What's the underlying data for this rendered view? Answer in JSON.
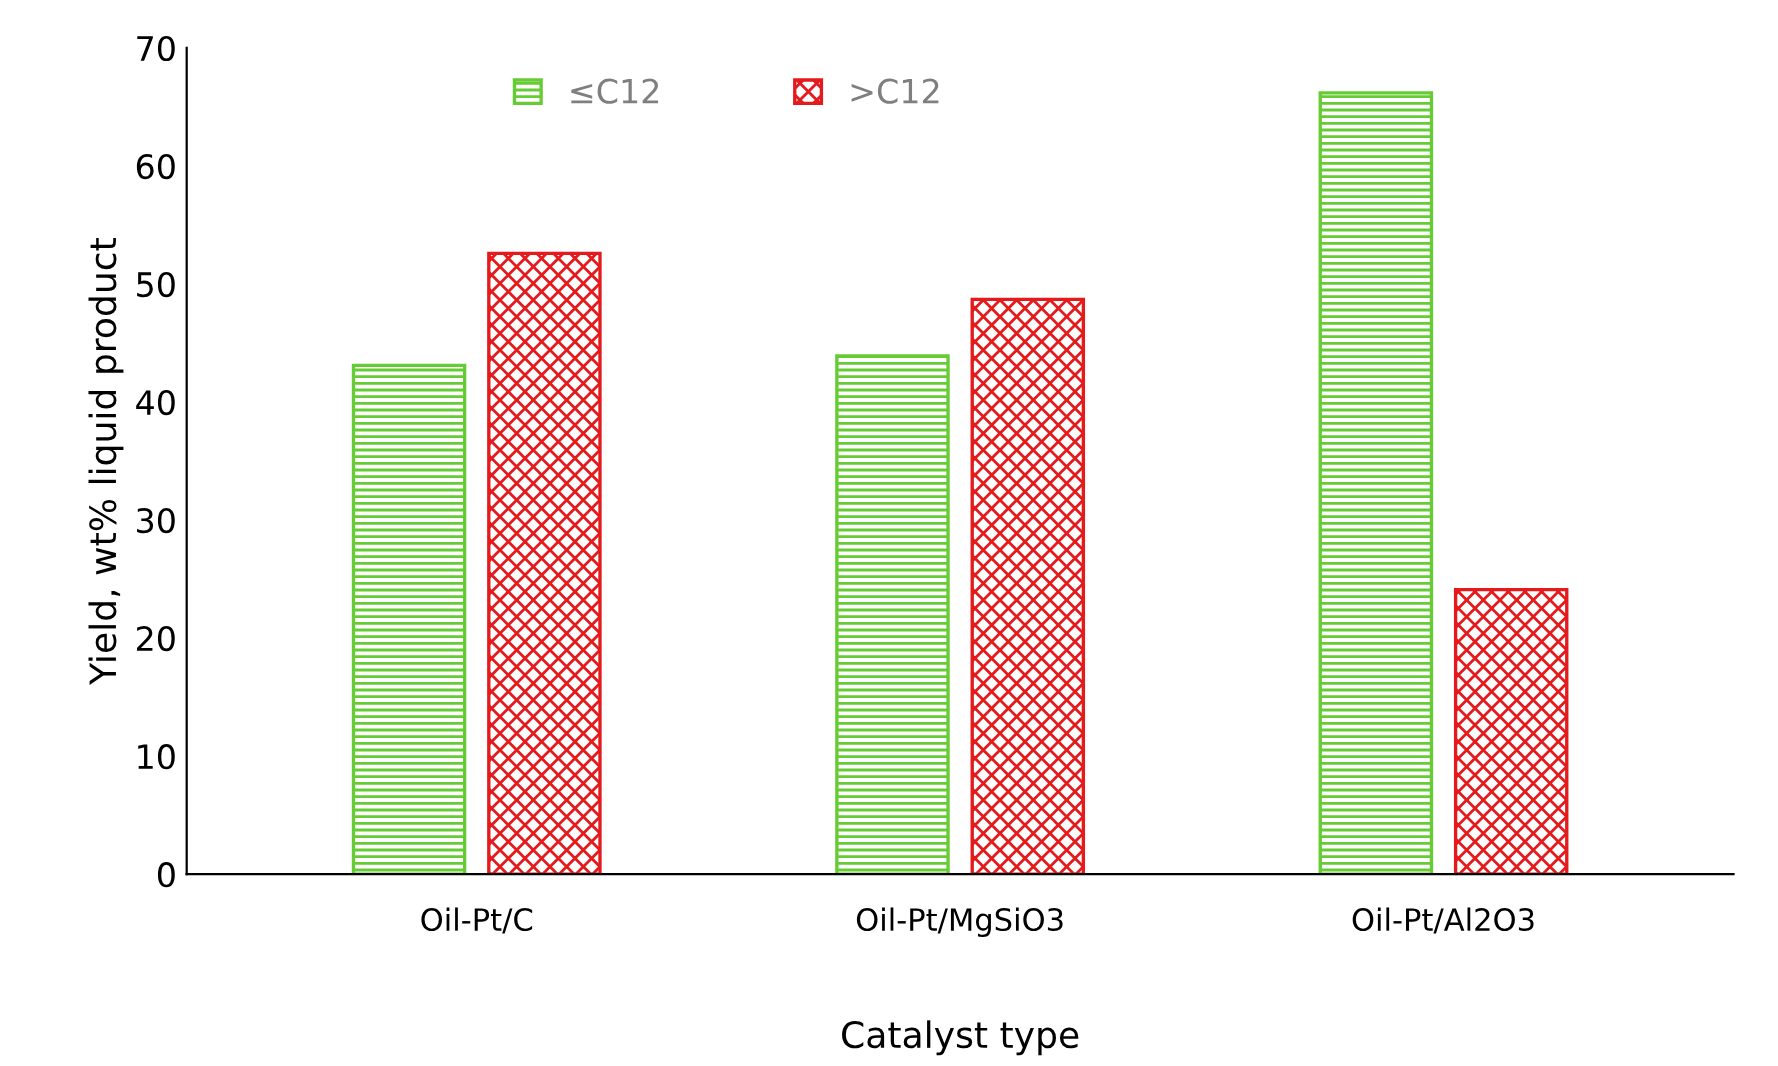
{
  "chart_data": {
    "type": "bar",
    "xlabel": "Catalyst type",
    "ylabel": "Yield, wt% liquid product",
    "categories": [
      "Oil-Pt/C",
      "Oil-Pt/MgSiO3",
      "Oil-Pt/Al2O3"
    ],
    "series": [
      {
        "name": "≤C12",
        "color": "#66cc33",
        "values": [
          43.1,
          43.9,
          66.2
        ]
      },
      {
        "name": ">C12",
        "color": "#e41a1c",
        "values": [
          52.6,
          48.7,
          24.1
        ]
      }
    ],
    "ylim": [
      0,
      70
    ],
    "yticks": [
      0,
      10,
      20,
      30,
      40,
      50,
      60,
      70
    ],
    "grid": false,
    "legend": "top"
  }
}
